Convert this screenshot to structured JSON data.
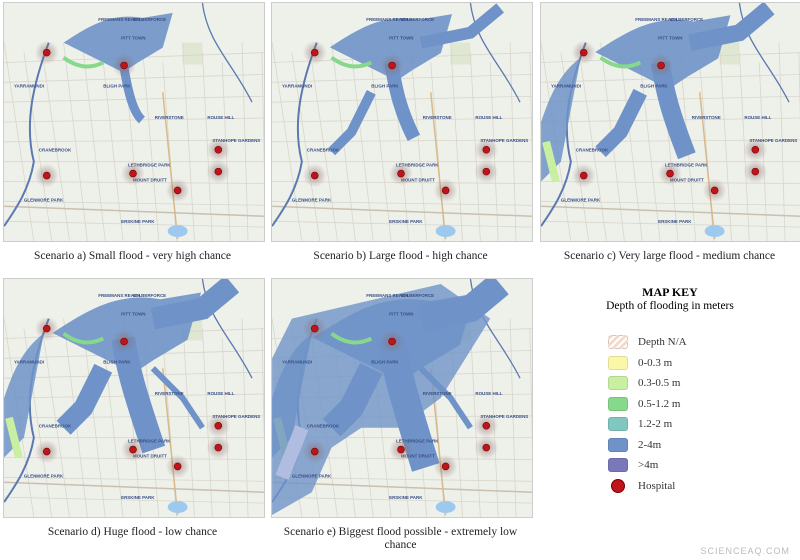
{
  "panels": [
    {
      "caption": "Scenario a) Small flood - very high chance",
      "extent": 1
    },
    {
      "caption": "Scenario b) Large flood - high chance",
      "extent": 2
    },
    {
      "caption": "Scenario c) Very large flood - medium chance",
      "extent": 3
    },
    {
      "caption": "Scenario d) Huge flood - low chance",
      "extent": 4
    },
    {
      "caption": "Scenario e) Biggest flood possible - extremely low chance",
      "extent": 5
    }
  ],
  "place_labels": [
    "FREEMANS REACH",
    "WILBERFORCE",
    "PITT TOWN",
    "YARRAMUNDI",
    "BLIGH PARK",
    "RIVERSTONE",
    "ROUSE HILL",
    "CRANEBROOK",
    "STANHOPE GARDENS",
    "LETHBRIDGE PARK",
    "MOUNT DRUITT",
    "GLENMORE PARK",
    "ERSKINE PARK"
  ],
  "key": {
    "title": "MAP KEY",
    "subtitle": "Depth of flooding in meters",
    "items": [
      {
        "label": "Depth N/A",
        "color": "#f3d9c8",
        "pattern": "hatched"
      },
      {
        "label": "0-0.3 m",
        "color": "#fbf7a8"
      },
      {
        "label": "0.3-0.5 m",
        "color": "#c9f0a0"
      },
      {
        "label": "0.5-1.2 m",
        "color": "#86d98a"
      },
      {
        "label": "1.2-2 m",
        "color": "#7fc7c0"
      },
      {
        "label": "2-4m",
        "color": "#6f93c8"
      },
      {
        "label": ">4m",
        "color": "#7a78b8"
      }
    ],
    "hospital_label": "Hospital",
    "hospital_color": "#c0141b"
  },
  "watermark": "SCIENCEAQ.COM"
}
